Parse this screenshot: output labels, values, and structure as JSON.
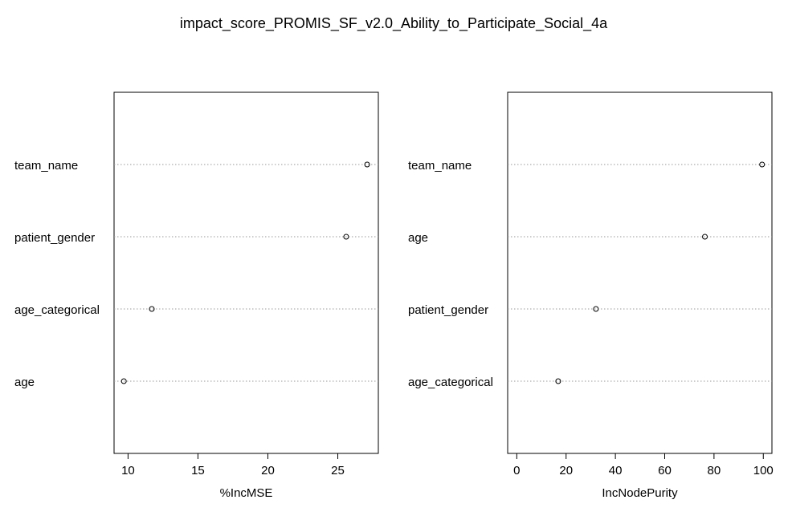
{
  "title": "impact_score_PROMIS_SF_v2.0_Ability_to_Participate_Social_4a",
  "chart_data": [
    {
      "type": "scatter",
      "xlabel": "%IncMSE",
      "categories": [
        "team_name",
        "patient_gender",
        "age_categorical",
        "age"
      ],
      "values": [
        27.1,
        25.6,
        11.7,
        9.7
      ],
      "xlim": [
        9.0,
        27.9
      ],
      "xticks": [
        10,
        15,
        20,
        25
      ],
      "grid": "dotted horizontal"
    },
    {
      "type": "scatter",
      "xlabel": "IncNodePurity",
      "categories": [
        "team_name",
        "age",
        "patient_gender",
        "age_categorical"
      ],
      "values": [
        99.5,
        76.3,
        32.1,
        16.8
      ],
      "xlim": [
        -3.7,
        103.5
      ],
      "xticks": [
        0,
        20,
        40,
        60,
        80,
        100
      ],
      "grid": "dotted horizontal"
    }
  ]
}
